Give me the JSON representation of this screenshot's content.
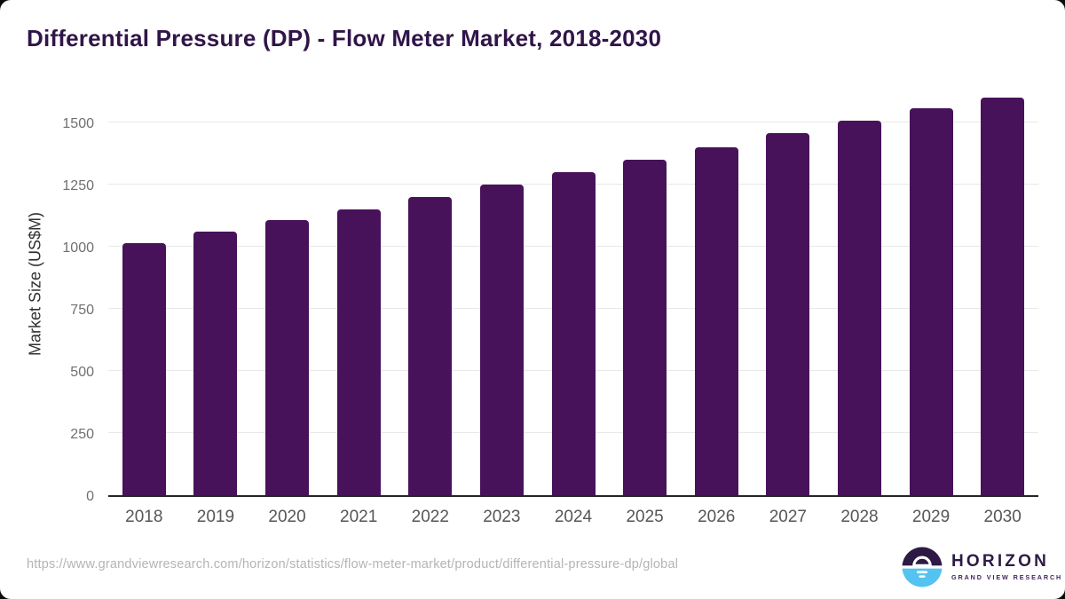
{
  "page": {
    "source_url": "https://www.grandviewresearch.com/horizon/statistics/flow-meter-market/product/differential-pressure-dp/global"
  },
  "branding": {
    "name": "HORIZON",
    "tagline": "GRAND VIEW RESEARCH",
    "icon": "sunset-over-water-icon"
  },
  "colors": {
    "bar": "#48125a",
    "title_text": "#311549",
    "gridline": "#e8e8e8",
    "axis_line": "#262626",
    "y_tick_label": "#707070",
    "x_tick_label": "#565656",
    "url_text": "#b4b4b4",
    "logo_purple": "#2d1a45",
    "logo_blue": "#55c3f0"
  },
  "chart_data": {
    "type": "bar",
    "title": "Differential Pressure (DP) - Flow Meter Market, 2018-2030",
    "xlabel": "",
    "ylabel": "Market Size (US$M)",
    "categories": [
      "2018",
      "2019",
      "2020",
      "2021",
      "2022",
      "2023",
      "2024",
      "2025",
      "2026",
      "2027",
      "2028",
      "2029",
      "2030"
    ],
    "values": [
      1015,
      1060,
      1105,
      1150,
      1200,
      1250,
      1300,
      1350,
      1400,
      1455,
      1505,
      1555,
      1600
    ],
    "yticks": [
      0,
      250,
      500,
      750,
      1000,
      1250,
      1500
    ],
    "ylim": [
      0,
      1642
    ],
    "grid": "horizontal",
    "legend": "none",
    "bar_color": "#48125a"
  }
}
